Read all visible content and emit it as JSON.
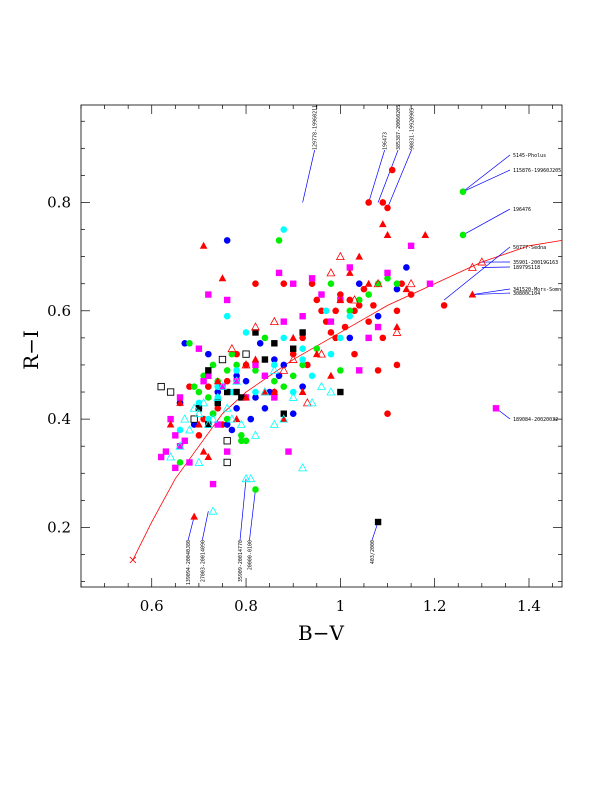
{
  "chart_data": {
    "type": "scatter",
    "title": "",
    "xlabel": "B−V",
    "ylabel": "R−I",
    "xlim": [
      0.45,
      1.47
    ],
    "ylim": [
      0.09,
      0.98
    ],
    "xticks": [
      0.6,
      0.8,
      1.0,
      1.2,
      1.4
    ],
    "xtick_labels": [
      "0.6",
      "0.8",
      "1",
      "1.2",
      "1.4"
    ],
    "yticks": [
      0.2,
      0.4,
      0.6,
      0.8
    ],
    "ytick_labels": [
      "0.2",
      "0.4",
      "0.6",
      "0.8"
    ],
    "grid": false,
    "colors": {
      "red": "#ff0000",
      "blue": "#0000ff",
      "green": "#00ee00",
      "cyan": "#00ffff",
      "magenta": "#ff00ff",
      "black": "#000000",
      "curve": "#ff0000",
      "leader": "#0000ff"
    },
    "curve": {
      "x": [
        0.56,
        0.6,
        0.65,
        0.7,
        0.75,
        0.8,
        0.85,
        0.9,
        1.0,
        1.1,
        1.2,
        1.3,
        1.4,
        1.47
      ],
      "y": [
        0.14,
        0.21,
        0.29,
        0.35,
        0.41,
        0.45,
        0.48,
        0.51,
        0.56,
        0.61,
        0.65,
        0.69,
        0.72,
        0.73
      ],
      "endpoint_marker": {
        "x": 0.56,
        "y": 0.14
      }
    },
    "series": [
      {
        "marker": "circle",
        "color": "red",
        "x": [
          0.71,
          0.72,
          0.74,
          0.75,
          0.76,
          0.78,
          0.8,
          0.82,
          0.84,
          0.86,
          0.88,
          0.9,
          0.92,
          0.93,
          0.95,
          0.96,
          0.97,
          0.98,
          0.99,
          1.0,
          1.01,
          1.02,
          1.03,
          1.04,
          1.05,
          1.06,
          1.07,
          1.08,
          1.09,
          1.1,
          1.12,
          1.13,
          1.15,
          1.09,
          1.1,
          1.11,
          1.12,
          1.22,
          1.06,
          0.68,
          0.66,
          0.7,
          0.94,
          0.99,
          1.03
        ],
        "y": [
          0.4,
          0.46,
          0.42,
          0.39,
          0.47,
          0.52,
          0.5,
          0.65,
          0.48,
          0.45,
          0.65,
          0.52,
          0.55,
          0.5,
          0.62,
          0.6,
          0.58,
          0.56,
          0.6,
          0.63,
          0.57,
          0.62,
          0.6,
          0.61,
          0.64,
          0.58,
          0.61,
          0.49,
          0.55,
          0.41,
          0.6,
          0.65,
          0.63,
          0.8,
          0.79,
          0.86,
          0.5,
          0.61,
          0.8,
          0.46,
          0.43,
          0.37,
          0.65,
          0.55,
          0.52
        ]
      },
      {
        "marker": "circle",
        "color": "blue",
        "x": [
          0.66,
          0.67,
          0.7,
          0.72,
          0.74,
          0.76,
          0.78,
          0.8,
          0.82,
          0.84,
          0.86,
          0.88,
          0.9,
          0.92,
          0.76,
          0.78,
          0.81,
          0.83,
          0.85,
          0.87,
          1.02,
          1.04,
          1.08,
          1.14,
          1.12,
          0.77,
          0.69,
          0.73
        ],
        "y": [
          0.43,
          0.54,
          0.42,
          0.52,
          0.45,
          0.39,
          0.48,
          0.47,
          0.44,
          0.42,
          0.51,
          0.5,
          0.41,
          0.46,
          0.73,
          0.42,
          0.4,
          0.54,
          0.45,
          0.48,
          0.55,
          0.65,
          0.59,
          0.68,
          0.64,
          0.38,
          0.39,
          0.41
        ]
      },
      {
        "marker": "circle",
        "color": "green",
        "x": [
          0.66,
          0.68,
          0.69,
          0.7,
          0.71,
          0.72,
          0.73,
          0.74,
          0.75,
          0.76,
          0.77,
          0.78,
          0.79,
          0.8,
          0.82,
          0.84,
          0.86,
          0.88,
          0.9,
          0.92,
          0.95,
          0.98,
          1.0,
          1.02,
          1.04,
          1.06,
          1.08,
          1.1,
          1.12,
          1.26,
          1.26,
          0.87,
          0.82,
          0.79,
          0.76,
          0.73
        ],
        "y": [
          0.32,
          0.54,
          0.46,
          0.45,
          0.48,
          0.44,
          0.5,
          0.47,
          0.51,
          0.49,
          0.52,
          0.5,
          0.37,
          0.36,
          0.49,
          0.55,
          0.47,
          0.46,
          0.48,
          0.5,
          0.53,
          0.65,
          0.49,
          0.6,
          0.62,
          0.63,
          0.65,
          0.66,
          0.65,
          0.82,
          0.74,
          0.73,
          0.27,
          0.36,
          0.4,
          0.41
        ]
      },
      {
        "marker": "circle",
        "color": "cyan",
        "x": [
          0.66,
          0.7,
          0.72,
          0.74,
          0.76,
          0.78,
          0.8,
          0.82,
          0.84,
          0.86,
          0.88,
          0.9,
          0.92,
          0.94,
          0.96,
          0.98,
          1.0,
          1.02,
          0.88,
          0.77,
          0.74,
          0.92,
          0.97
        ],
        "y": [
          0.38,
          0.43,
          0.4,
          0.46,
          0.59,
          0.49,
          0.56,
          0.45,
          0.48,
          0.5,
          0.55,
          0.45,
          0.51,
          0.48,
          0.63,
          0.52,
          0.55,
          0.59,
          0.75,
          0.45,
          0.44,
          0.53,
          0.6
        ]
      },
      {
        "marker": "square",
        "color": "magenta",
        "x": [
          0.62,
          0.64,
          0.65,
          0.66,
          0.67,
          0.68,
          0.7,
          0.72,
          0.74,
          0.75,
          0.76,
          0.78,
          0.8,
          0.82,
          0.84,
          0.86,
          0.88,
          0.9,
          0.92,
          0.94,
          0.96,
          0.98,
          1.0,
          1.02,
          1.04,
          1.06,
          1.08,
          1.1,
          1.15,
          1.19,
          1.33,
          0.72,
          0.87,
          0.71,
          0.73,
          0.76,
          0.66,
          0.65,
          0.63,
          0.89
        ],
        "y": [
          0.33,
          0.4,
          0.31,
          0.44,
          0.36,
          0.32,
          0.53,
          0.48,
          0.39,
          0.46,
          0.34,
          0.47,
          0.44,
          0.5,
          0.48,
          0.44,
          0.58,
          0.65,
          0.59,
          0.66,
          0.63,
          0.58,
          0.62,
          0.68,
          0.49,
          0.55,
          0.57,
          0.67,
          0.72,
          0.65,
          0.42,
          0.63,
          0.67,
          0.47,
          0.28,
          0.62,
          0.35,
          0.37,
          0.34,
          0.34
        ]
      },
      {
        "marker": "square",
        "color": "black",
        "x": [
          0.7,
          0.72,
          0.74,
          0.76,
          0.78,
          0.8,
          0.82,
          0.84,
          0.86,
          0.88,
          0.9,
          0.92,
          1.0,
          1.08,
          0.75,
          0.79,
          0.72
        ],
        "y": [
          0.42,
          0.39,
          0.43,
          0.45,
          0.45,
          0.52,
          0.56,
          0.51,
          0.54,
          0.41,
          0.53,
          0.56,
          0.45,
          0.21,
          0.51,
          0.44,
          0.49
        ]
      },
      {
        "marker": "square-open",
        "color": "black",
        "x": [
          0.62,
          0.64,
          0.69,
          0.75,
          0.76,
          0.8,
          0.76
        ],
        "y": [
          0.46,
          0.45,
          0.4,
          0.51,
          0.36,
          0.52,
          0.32
        ]
      },
      {
        "marker": "triangle",
        "color": "red",
        "x": [
          0.64,
          0.66,
          0.7,
          0.71,
          0.72,
          0.74,
          0.75,
          0.78,
          0.8,
          0.82,
          0.84,
          0.86,
          0.88,
          0.9,
          0.92,
          0.95,
          0.98,
          1.0,
          1.02,
          1.04,
          1.06,
          1.09,
          1.1,
          1.12,
          1.14,
          1.18,
          1.28,
          0.69,
          0.71
        ],
        "y": [
          0.39,
          0.43,
          0.39,
          0.72,
          0.33,
          0.47,
          0.66,
          0.4,
          0.44,
          0.51,
          0.45,
          0.45,
          0.4,
          0.55,
          0.45,
          0.52,
          0.48,
          0.62,
          0.67,
          0.7,
          0.65,
          0.76,
          0.74,
          0.57,
          0.64,
          0.74,
          0.63,
          0.22,
          0.34
        ]
      },
      {
        "marker": "triangle-open",
        "color": "red",
        "x": [
          0.77,
          0.8,
          0.82,
          0.84,
          0.86,
          0.88,
          0.9,
          0.93,
          0.96,
          0.98,
          1.0,
          1.03,
          1.08,
          1.12,
          1.15,
          1.28,
          1.3
        ],
        "y": [
          0.53,
          0.5,
          0.57,
          0.45,
          0.58,
          0.49,
          0.51,
          0.43,
          0.52,
          0.67,
          0.7,
          0.62,
          0.65,
          0.56,
          0.65,
          0.68,
          0.69
        ]
      },
      {
        "marker": "triangle-open",
        "color": "cyan",
        "x": [
          0.64,
          0.66,
          0.68,
          0.69,
          0.7,
          0.71,
          0.72,
          0.73,
          0.74,
          0.75,
          0.76,
          0.77,
          0.78,
          0.79,
          0.8,
          0.82,
          0.84,
          0.86,
          0.88,
          0.9,
          0.92,
          0.94,
          0.96,
          0.98,
          0.81,
          0.73,
          0.86,
          0.7,
          0.67
        ],
        "y": [
          0.33,
          0.35,
          0.38,
          0.42,
          0.41,
          0.43,
          0.39,
          0.4,
          0.44,
          0.46,
          0.42,
          0.4,
          0.47,
          0.39,
          0.29,
          0.37,
          0.45,
          0.49,
          0.4,
          0.44,
          0.31,
          0.43,
          0.46,
          0.45,
          0.29,
          0.23,
          0.39,
          0.32,
          0.4
        ]
      }
    ],
    "annotations": [
      {
        "label": "129778-19960211",
        "x": 0.92,
        "y": 0.8,
        "side": "top"
      },
      {
        "label": "196473",
        "x": 1.06,
        "y": 0.8,
        "side": "top"
      },
      {
        "label": "385387-20060205",
        "x": 1.08,
        "y": 0.8,
        "side": "top"
      },
      {
        "label": "90831-19920905",
        "x": 1.1,
        "y": 0.79,
        "side": "top"
      },
      {
        "label": "5145-Pholus",
        "x": 1.26,
        "y": 0.82,
        "side": "right"
      },
      {
        "label": "115876-19960J205",
        "x": 1.26,
        "y": 0.82,
        "side": "right"
      },
      {
        "label": "196476",
        "x": 1.26,
        "y": 0.74,
        "side": "right"
      },
      {
        "label": "50777-Sedna",
        "x": 1.22,
        "y": 0.62,
        "side": "right"
      },
      {
        "label": "35901-20019G163",
        "x": 1.3,
        "y": 0.69,
        "side": "right"
      },
      {
        "label": "18979S118",
        "x": 1.3,
        "y": 0.68,
        "side": "right"
      },
      {
        "label": "341520-Mors-Somn",
        "x": 1.28,
        "y": 0.63,
        "side": "right"
      },
      {
        "label": "30800C104",
        "x": 1.28,
        "y": 0.63,
        "side": "right"
      },
      {
        "label": "189084-20020032",
        "x": 1.33,
        "y": 0.42,
        "side": "right"
      },
      {
        "label": "139094-20040J80",
        "x": 0.69,
        "y": 0.22,
        "side": "bottom"
      },
      {
        "label": "27003-20014090",
        "x": 0.72,
        "y": 0.23,
        "side": "bottom"
      },
      {
        "label": "35909-20014770",
        "x": 0.8,
        "y": 0.29,
        "side": "bottom"
      },
      {
        "label": "20000-0100",
        "x": 0.82,
        "y": 0.27,
        "side": "bottom"
      },
      {
        "label": "403/2000",
        "x": 1.08,
        "y": 0.21,
        "side": "bottom"
      }
    ]
  }
}
